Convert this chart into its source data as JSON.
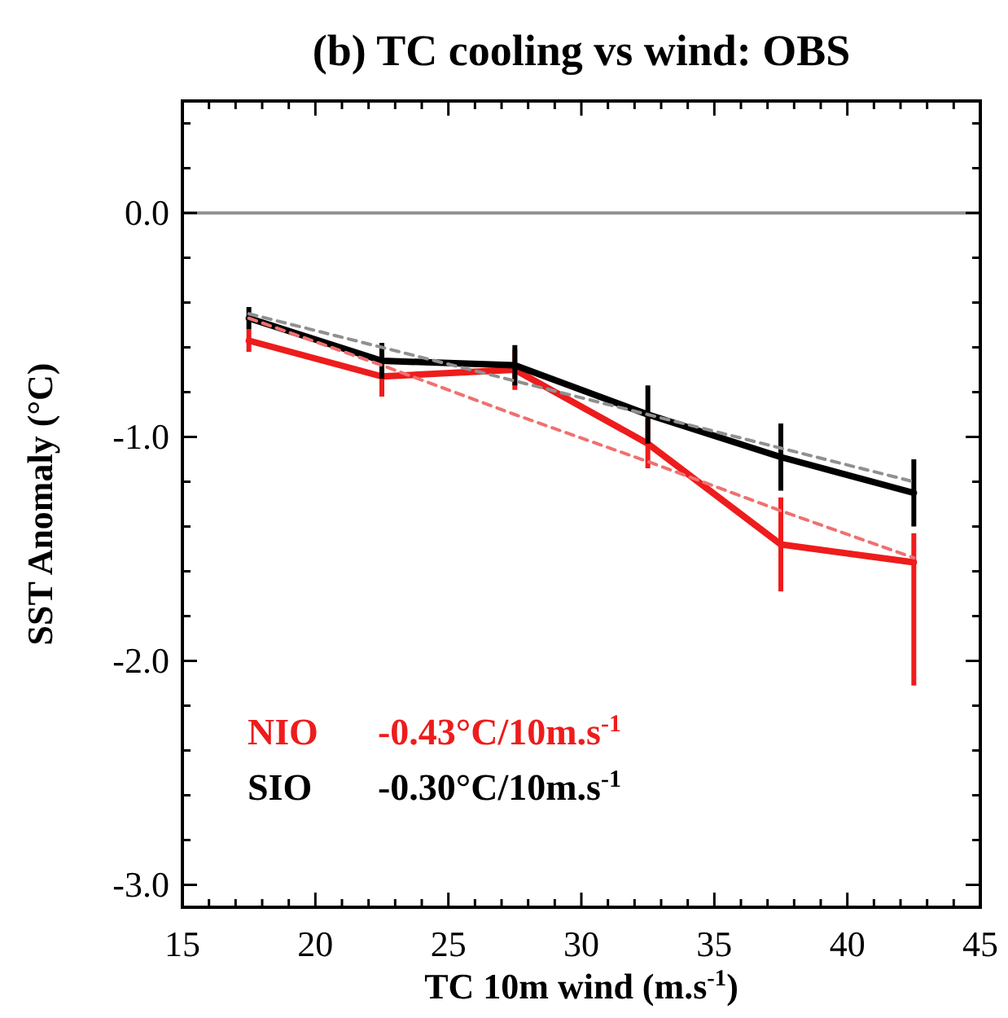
{
  "chart_data": {
    "type": "line",
    "title": "(b) TC cooling vs wind: OBS",
    "xlabel": "TC 10m wind (m.s$^{-1}$)",
    "ylabel": "SST Anomaly (°C)",
    "x": [
      17.5,
      22.5,
      27.5,
      32.5,
      37.5,
      42.5
    ],
    "series": [
      {
        "name": "NIO",
        "color": "#ee1c1c",
        "values": [
          -0.57,
          -0.73,
          -0.7,
          -1.03,
          -1.48,
          -1.56
        ],
        "errors": [
          0.05,
          0.09,
          0.09,
          0.11,
          0.21,
          [
            -2.11,
            -1.43
          ]
        ]
      },
      {
        "name": "SIO",
        "color": "#000000",
        "values": [
          -0.47,
          -0.66,
          -0.68,
          -0.9,
          -1.09,
          -1.25
        ],
        "errors": [
          0.05,
          0.08,
          0.09,
          0.13,
          0.15,
          0.15
        ]
      },
      {
        "color": "#f07070",
        "line_style": "dashed",
        "values": [
          -0.47,
          -0.68,
          -0.9,
          -1.11,
          -1.33,
          -1.54
        ]
      },
      {
        "color": "#909090",
        "line_style": "dashed",
        "values": [
          -0.45,
          -0.6,
          -0.75,
          -0.9,
          -1.05,
          -1.2
        ]
      }
    ],
    "annotations": [
      "-0.43°C/10m.s$^{-1}$",
      "-0.30°C/10m.s$^{-1}$"
    ],
    "legend": "bottom left",
    "line_style": "solid",
    "marker": "none",
    "ref_lines": [
      {
        "axis": "y",
        "value": 0,
        "color": "#909090"
      }
    ],
    "xlim": [
      15,
      45
    ],
    "ylim": [
      -3.1,
      0.5
    ],
    "xticks": [
      15,
      {
        "value": 16,
        "label": null
      },
      {
        "value": 17,
        "label": null
      },
      {
        "value": 18,
        "label": null
      },
      {
        "value": 19,
        "label": null
      },
      20,
      {
        "value": 21,
        "label": null
      },
      {
        "value": 22,
        "label": null
      },
      {
        "value": 23,
        "label": null
      },
      {
        "value": 24,
        "label": null
      },
      25,
      {
        "value": 26,
        "label": null
      },
      {
        "value": 27,
        "label": null
      },
      {
        "value": 28,
        "label": null
      },
      {
        "value": 29,
        "label": null
      },
      30,
      {
        "value": 31,
        "label": null
      },
      {
        "value": 32,
        "label": null
      },
      {
        "value": 33,
        "label": null
      },
      {
        "value": 34,
        "label": null
      },
      35,
      {
        "value": 36,
        "label": null
      },
      {
        "value": 37,
        "label": null
      },
      {
        "value": 38,
        "label": null
      },
      {
        "value": 39,
        "label": null
      },
      40,
      {
        "value": 41,
        "label": null
      },
      {
        "value": 42,
        "label": null
      },
      {
        "value": 43,
        "label": null
      },
      {
        "value": 44,
        "label": null
      },
      45
    ],
    "yticks": [
      {
        "value": -3,
        "label": "-3.0"
      },
      {
        "value": -2.8,
        "label": null
      },
      {
        "value": -2.6,
        "label": null
      },
      {
        "value": -2.4,
        "label": null
      },
      {
        "value": -2.2,
        "label": null
      },
      {
        "value": -2,
        "label": "-2.0"
      },
      {
        "value": -1.8,
        "label": null
      },
      {
        "value": -1.6,
        "label": null
      },
      {
        "value": -1.4,
        "label": null
      },
      {
        "value": -1.2,
        "label": null
      },
      {
        "value": -1,
        "label": "-1.0"
      },
      {
        "value": -0.8,
        "label": null
      },
      {
        "value": -0.6,
        "label": null
      },
      {
        "value": -0.4,
        "label": null
      },
      {
        "value": -0.2,
        "label": null
      },
      {
        "value": 0,
        "label": "0.0"
      },
      {
        "value": 0.2,
        "label": null
      },
      {
        "value": 0.4,
        "label": null
      }
    ]
  }
}
